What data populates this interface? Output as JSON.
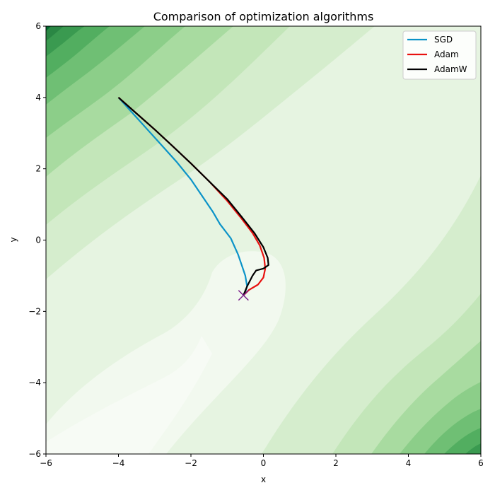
{
  "chart_data": {
    "type": "line",
    "title": "Comparison of optimization algorithms",
    "xlabel": "x",
    "ylabel": "y",
    "xlim": [
      -6,
      6
    ],
    "ylim": [
      -6,
      6
    ],
    "xticks": [
      -6,
      -4,
      -2,
      0,
      2,
      4,
      6
    ],
    "yticks": [
      -6,
      -4,
      -2,
      0,
      2,
      4,
      6
    ],
    "xtick_labels": [
      "−6",
      "−4",
      "−2",
      "0",
      "2",
      "4",
      "6"
    ],
    "ytick_labels": [
      "−6",
      "−4",
      "−2",
      "0",
      "2",
      "4",
      "6"
    ],
    "grid": false,
    "legend_position": "top-right",
    "background": "filled contour map, light green (low) to dark green (high)",
    "series": [
      {
        "name": "SGD",
        "color": "#0b93c8",
        "x": [
          -4.0,
          -3.6,
          -3.2,
          -2.8,
          -2.4,
          -2.0,
          -1.7,
          -1.4,
          -1.2,
          -0.9,
          -0.7,
          -0.6,
          -0.5,
          -0.45,
          -0.5,
          -0.55
        ],
        "y": [
          4.0,
          3.55,
          3.1,
          2.65,
          2.2,
          1.7,
          1.25,
          0.8,
          0.45,
          0.05,
          -0.4,
          -0.7,
          -1.0,
          -1.3,
          -1.45,
          -1.55
        ]
      },
      {
        "name": "Adam",
        "color": "#e8110f",
        "x": [
          -4.0,
          -3.5,
          -3.0,
          -2.5,
          -2.0,
          -1.5,
          -1.0,
          -0.6,
          -0.3,
          -0.1,
          0.02,
          0.05,
          0.0,
          -0.15,
          -0.4,
          -0.55
        ],
        "y": [
          4.0,
          3.55,
          3.1,
          2.63,
          2.15,
          1.65,
          1.1,
          0.6,
          0.2,
          -0.15,
          -0.5,
          -0.8,
          -1.05,
          -1.25,
          -1.4,
          -1.55
        ]
      },
      {
        "name": "AdamW",
        "color": "#000000",
        "x": [
          -4.0,
          -3.5,
          -3.0,
          -2.5,
          -2.0,
          -1.5,
          -1.0,
          -0.6,
          -0.25,
          0.0,
          0.12,
          0.14,
          0.0,
          -0.2,
          -0.3,
          -0.45,
          -0.55
        ],
        "y": [
          4.0,
          3.55,
          3.1,
          2.63,
          2.15,
          1.65,
          1.15,
          0.65,
          0.2,
          -0.2,
          -0.5,
          -0.7,
          -0.8,
          -0.85,
          -1.0,
          -1.3,
          -1.55
        ]
      }
    ],
    "markers": [
      {
        "label": "minimum",
        "x": -0.55,
        "y": -1.55,
        "symbol": "x",
        "color": "#7b1f8c"
      }
    ]
  }
}
